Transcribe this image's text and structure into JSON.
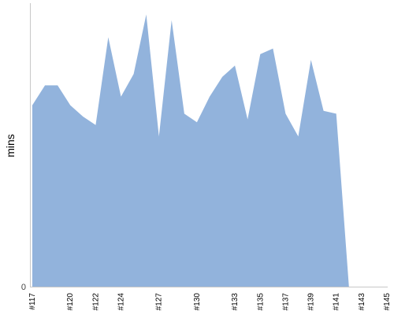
{
  "chart_data": {
    "type": "area",
    "title": "",
    "xlabel": "",
    "ylabel": "mins",
    "x_labels_shown": [
      "#117",
      "#120",
      "#122",
      "#124",
      "#127",
      "#130",
      "#133",
      "#135",
      "#137",
      "#139",
      "#141",
      "#143",
      "#145"
    ],
    "y_tick_labels_shown": [
      "0"
    ],
    "series": [
      {
        "color": "#92b3dc",
        "x": [
          117,
          118,
          119,
          120,
          121,
          122,
          123,
          124,
          125,
          126,
          127,
          128,
          129,
          130,
          131,
          132,
          133,
          134,
          135,
          136,
          137,
          138,
          139,
          140,
          141,
          142,
          143,
          144,
          145
        ],
        "values": [
          64,
          71,
          71,
          64,
          60,
          57,
          88,
          67,
          75,
          96,
          53,
          94,
          61,
          58,
          67,
          74,
          78,
          59,
          82,
          84,
          61,
          53,
          80,
          62,
          61,
          0,
          0,
          0,
          0
        ]
      }
    ],
    "ylim": [
      0,
      100
    ],
    "grid": false,
    "legend": "none"
  }
}
